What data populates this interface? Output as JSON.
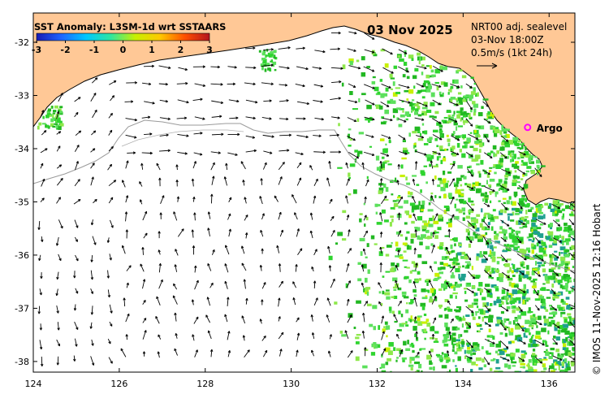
{
  "header": {
    "title": "SST Anomaly: L3SM-1d wrt SSTAARS",
    "date": "03 Nov 2025",
    "info_lines": [
      "NRT00 adj. sealevel",
      "03-Nov 18:00Z",
      "0.5m/s (1kt 24h)"
    ]
  },
  "colorbar": {
    "ticks": [
      "-3",
      "-2",
      "-1",
      "0",
      "1",
      "2",
      "3"
    ],
    "colors": [
      "#1a1ab4",
      "#1e64ff",
      "#00c8ff",
      "#2fe6a0",
      "#c8f000",
      "#ffc800",
      "#ff5000",
      "#b4141e"
    ]
  },
  "axes": {
    "x_ticks": [
      "124",
      "126",
      "128",
      "130",
      "132",
      "134",
      "136"
    ],
    "y_ticks": [
      "-32",
      "-33",
      "-34",
      "-35",
      "-36",
      "-37",
      "-38"
    ]
  },
  "markers": [
    {
      "label": "Argo",
      "lon": 135.5,
      "lat": -33.6,
      "color": "#ff00ff"
    }
  ],
  "credit": "© IMOS 11-Nov-2025 12:16 Hobart",
  "colors": {
    "land": "#ffc896",
    "ocean": "#ffffff",
    "sst_greens": [
      "#2fd42f",
      "#5ce05c",
      "#22b822",
      "#8ee84a",
      "#c8f000",
      "#1fa090"
    ]
  }
}
